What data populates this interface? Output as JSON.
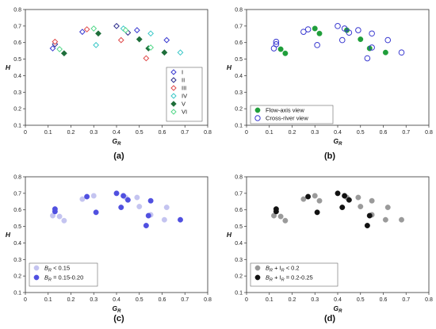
{
  "chart_data": [
    {
      "panel_label": "(a)",
      "type": "scatter",
      "xlabel": "G",
      "xlabel_sub": "R",
      "ylabel": "H",
      "xlim": [
        0,
        0.8
      ],
      "ylim": [
        0.1,
        0.8
      ],
      "x_ticks": [
        "0",
        "0.1",
        "0.2",
        "0.3",
        "0.4",
        "0.5",
        "0.6",
        "0.7",
        "0.8"
      ],
      "y_ticks": [
        "0.1",
        "0.2",
        "0.3",
        "0.4",
        "0.5",
        "0.6",
        "0.7",
        "0.8"
      ],
      "legend_position": "right",
      "series": [
        {
          "name": "I",
          "marker": "diamond-open",
          "color": "#3a3ad0",
          "points": [
            [
              0.12,
              0.565
            ],
            [
              0.25,
              0.665
            ],
            [
              0.49,
              0.675
            ],
            [
              0.62,
              0.615
            ]
          ]
        },
        {
          "name": "II",
          "marker": "diamond-open",
          "color": "#2a2a8a",
          "points": [
            [
              0.13,
              0.59
            ],
            [
              0.4,
              0.7
            ],
            [
              0.45,
              0.66
            ]
          ]
        },
        {
          "name": "III",
          "marker": "diamond-open",
          "color": "#e04b4b",
          "points": [
            [
              0.13,
              0.605
            ],
            [
              0.27,
              0.68
            ],
            [
              0.42,
              0.615
            ],
            [
              0.53,
              0.505
            ]
          ]
        },
        {
          "name": "IV",
          "marker": "diamond-open",
          "color": "#3cc8c8",
          "points": [
            [
              0.31,
              0.585
            ],
            [
              0.43,
              0.685
            ],
            [
              0.55,
              0.655
            ],
            [
              0.68,
              0.54
            ]
          ]
        },
        {
          "name": "V",
          "marker": "diamond-filled",
          "color": "#1e6e3a",
          "points": [
            [
              0.17,
              0.535
            ],
            [
              0.32,
              0.655
            ],
            [
              0.5,
              0.62
            ],
            [
              0.54,
              0.565
            ],
            [
              0.61,
              0.54
            ]
          ]
        },
        {
          "name": "VI",
          "marker": "diamond-open",
          "color": "#55d88a",
          "points": [
            [
              0.15,
              0.56
            ],
            [
              0.3,
              0.685
            ],
            [
              0.44,
              0.675
            ],
            [
              0.55,
              0.57
            ]
          ]
        }
      ]
    },
    {
      "panel_label": "(b)",
      "type": "scatter",
      "xlabel": "G",
      "xlabel_sub": "R",
      "ylabel": "H",
      "xlim": [
        0,
        0.8
      ],
      "ylim": [
        0.1,
        0.8
      ],
      "x_ticks": [
        "0",
        "0.1",
        "0.2",
        "0.3",
        "0.4",
        "0.5",
        "0.6",
        "0.7",
        "0.8"
      ],
      "y_ticks": [
        "0.1",
        "0.2",
        "0.3",
        "0.4",
        "0.5",
        "0.6",
        "0.7",
        "0.8"
      ],
      "legend_position": "bottom-left",
      "series": [
        {
          "name": "Flow-axis view",
          "marker": "circle-filled",
          "color": "#1f9e3a",
          "points": [
            [
              0.15,
              0.56
            ],
            [
              0.17,
              0.535
            ],
            [
              0.3,
              0.685
            ],
            [
              0.32,
              0.655
            ],
            [
              0.44,
              0.675
            ],
            [
              0.5,
              0.62
            ],
            [
              0.54,
              0.565
            ],
            [
              0.61,
              0.54
            ]
          ]
        },
        {
          "name": "Cross-river view",
          "marker": "circle-open",
          "color": "#3a3ad0",
          "points": [
            [
              0.12,
              0.565
            ],
            [
              0.13,
              0.59
            ],
            [
              0.13,
              0.605
            ],
            [
              0.25,
              0.665
            ],
            [
              0.27,
              0.68
            ],
            [
              0.31,
              0.585
            ],
            [
              0.4,
              0.7
            ],
            [
              0.42,
              0.615
            ],
            [
              0.43,
              0.685
            ],
            [
              0.45,
              0.66
            ],
            [
              0.49,
              0.675
            ],
            [
              0.53,
              0.505
            ],
            [
              0.55,
              0.655
            ],
            [
              0.55,
              0.57
            ],
            [
              0.62,
              0.615
            ],
            [
              0.68,
              0.54
            ]
          ]
        }
      ]
    },
    {
      "panel_label": "(c)",
      "type": "scatter",
      "xlabel": "G",
      "xlabel_sub": "R",
      "ylabel": "H",
      "xlim": [
        0,
        0.8
      ],
      "ylim": [
        0.1,
        0.8
      ],
      "x_ticks": [
        "0",
        "0.1",
        "0.2",
        "0.3",
        "0.4",
        "0.5",
        "0.6",
        "0.7",
        "0.8"
      ],
      "y_ticks": [
        "0.1",
        "0.2",
        "0.3",
        "0.4",
        "0.5",
        "0.6",
        "0.7",
        "0.8"
      ],
      "legend_position": "bottom-left",
      "series": [
        {
          "name_main": "B",
          "name_sub": "R",
          "name_rest": " < 0.15",
          "marker": "circle-filled",
          "color": "#c4c4f0",
          "points": [
            [
              0.12,
              0.565
            ],
            [
              0.15,
              0.56
            ],
            [
              0.17,
              0.535
            ],
            [
              0.25,
              0.665
            ],
            [
              0.3,
              0.685
            ],
            [
              0.44,
              0.675
            ],
            [
              0.49,
              0.675
            ],
            [
              0.5,
              0.62
            ],
            [
              0.55,
              0.57
            ],
            [
              0.61,
              0.54
            ],
            [
              0.62,
              0.615
            ]
          ]
        },
        {
          "name_main": "B",
          "name_sub": "R",
          "name_rest": " = 0.15-0.20",
          "marker": "circle-filled",
          "color": "#5050e0",
          "points": [
            [
              0.13,
              0.59
            ],
            [
              0.13,
              0.605
            ],
            [
              0.27,
              0.68
            ],
            [
              0.31,
              0.585
            ],
            [
              0.4,
              0.7
            ],
            [
              0.42,
              0.615
            ],
            [
              0.43,
              0.685
            ],
            [
              0.45,
              0.66
            ],
            [
              0.53,
              0.505
            ],
            [
              0.54,
              0.565
            ],
            [
              0.55,
              0.655
            ],
            [
              0.68,
              0.54
            ]
          ]
        }
      ]
    },
    {
      "panel_label": "(d)",
      "type": "scatter",
      "xlabel": "G",
      "xlabel_sub": "R",
      "ylabel": "H",
      "xlim": [
        0,
        0.8
      ],
      "ylim": [
        0.1,
        0.8
      ],
      "x_ticks": [
        "0",
        "0.1",
        "0.2",
        "0.3",
        "0.4",
        "0.5",
        "0.6",
        "0.7",
        "0.8"
      ],
      "y_ticks": [
        "0.1",
        "0.2",
        "0.3",
        "0.4",
        "0.5",
        "0.6",
        "0.7",
        "0.8"
      ],
      "legend_position": "bottom-left",
      "series": [
        {
          "name_parts": [
            [
              "B",
              "R"
            ],
            [
              " + I",
              "R"
            ]
          ],
          "name_rest": " < 0.2",
          "marker": "circle-filled",
          "color": "#9a9a9a",
          "points": [
            [
              0.12,
              0.565
            ],
            [
              0.15,
              0.56
            ],
            [
              0.17,
              0.535
            ],
            [
              0.25,
              0.665
            ],
            [
              0.3,
              0.685
            ],
            [
              0.32,
              0.655
            ],
            [
              0.44,
              0.675
            ],
            [
              0.49,
              0.675
            ],
            [
              0.5,
              0.62
            ],
            [
              0.55,
              0.655
            ],
            [
              0.55,
              0.57
            ],
            [
              0.61,
              0.54
            ],
            [
              0.62,
              0.615
            ],
            [
              0.68,
              0.54
            ]
          ]
        },
        {
          "name_parts": [
            [
              "B",
              "R"
            ],
            [
              " + I",
              "R"
            ]
          ],
          "name_rest": " = 0.2-0.25",
          "marker": "circle-filled",
          "color": "#111111",
          "points": [
            [
              0.13,
              0.59
            ],
            [
              0.13,
              0.605
            ],
            [
              0.27,
              0.68
            ],
            [
              0.31,
              0.585
            ],
            [
              0.4,
              0.7
            ],
            [
              0.42,
              0.615
            ],
            [
              0.43,
              0.685
            ],
            [
              0.45,
              0.66
            ],
            [
              0.53,
              0.505
            ],
            [
              0.54,
              0.565
            ]
          ]
        }
      ]
    }
  ]
}
